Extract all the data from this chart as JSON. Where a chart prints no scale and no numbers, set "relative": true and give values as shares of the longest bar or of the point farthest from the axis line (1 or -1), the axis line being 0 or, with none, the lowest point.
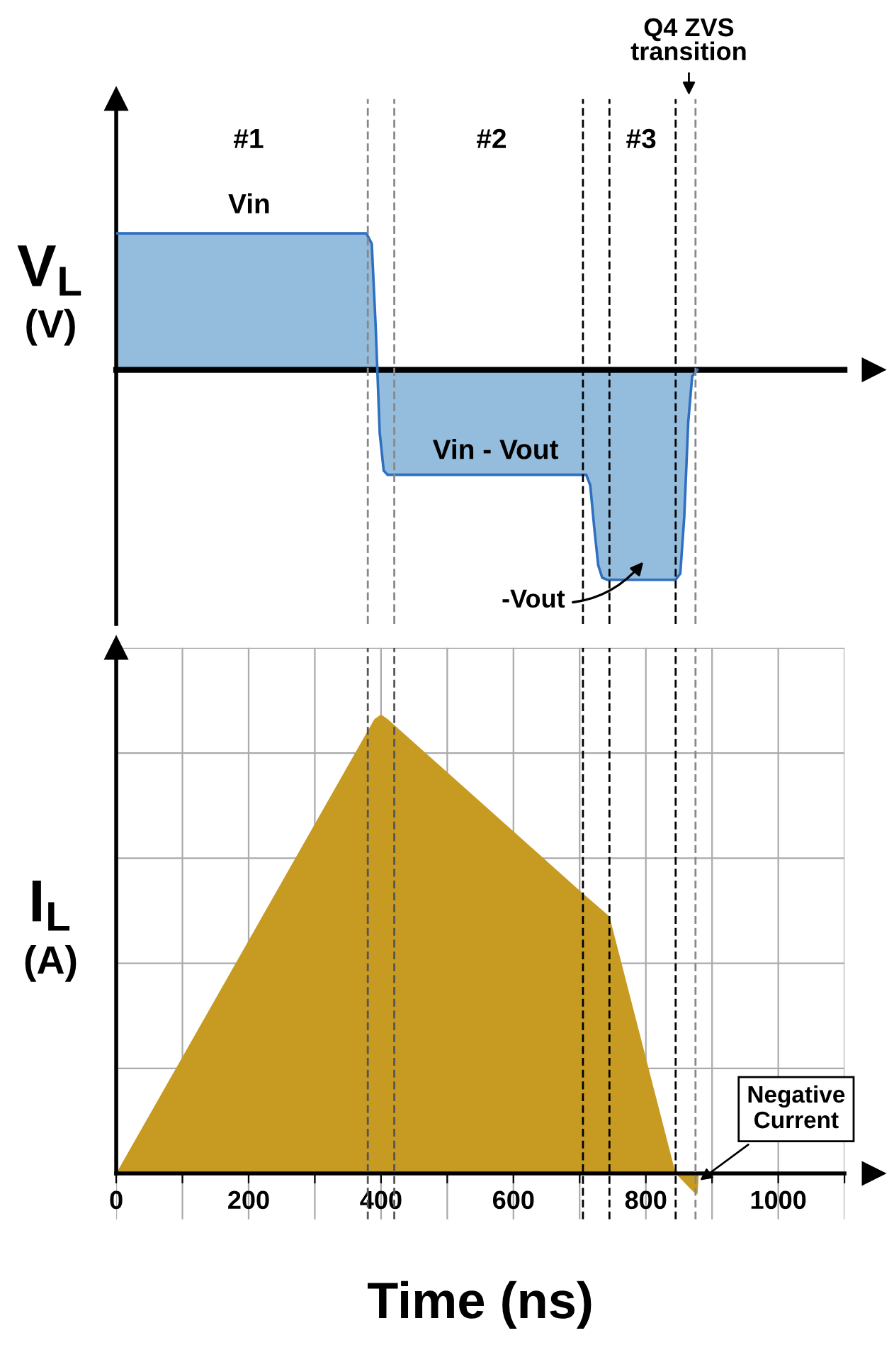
{
  "chart_data": [
    {
      "type": "area",
      "relative": true,
      "ylabel": "V$_{L}$ (V)",
      "x": [
        0,
        378,
        386,
        392,
        398,
        404,
        410,
        710,
        716,
        722,
        728,
        734,
        742,
        845,
        852,
        858,
        864,
        870,
        878
      ],
      "series": [
        {
          "color": "#94bcdc",
          "values": [
            0.65,
            0.65,
            0.6,
            0.2,
            -0.3,
            -0.48,
            -0.5,
            -0.5,
            -0.55,
            -0.75,
            -0.93,
            -0.99,
            -1,
            -1,
            -0.97,
            -0.7,
            -0.25,
            -0.03,
            0
          ]
        }
      ],
      "xlim": [
        0,
        1100
      ],
      "tick_labels": false,
      "grid": false,
      "ref_lines": [
        {
          "axis": "x",
          "value": 380,
          "color": "#888888",
          "line_style": "dashed"
        },
        {
          "axis": "x",
          "value": 420,
          "color": "#888888",
          "line_style": "dashed"
        },
        {
          "axis": "x",
          "value": 705,
          "color": "#000000",
          "line_style": "dashed"
        },
        {
          "axis": "x",
          "value": 745,
          "color": "#000000",
          "line_style": "dashed"
        },
        {
          "axis": "x",
          "value": 845,
          "color": "#000000",
          "line_style": "dashed"
        },
        {
          "axis": "x",
          "value": 875,
          "color": "#888888",
          "line_style": "dashed"
        }
      ],
      "annotations": [
        "#1",
        "#2",
        "#3",
        "Vin",
        "Vin - Vout",
        "-Vout",
        "Q4 ZVS transition"
      ]
    },
    {
      "type": "area",
      "relative": true,
      "ylabel": "I$_{L}$ (A)",
      "xlabel": "Time (ns)",
      "x": [
        0,
        390,
        400,
        410,
        705,
        745,
        845,
        855,
        865,
        872,
        878,
        880
      ],
      "series": [
        {
          "color": "#c79a22",
          "values": [
            0,
            0.99,
            1,
            0.99,
            0.61,
            0.56,
            0,
            -0.015,
            -0.03,
            -0.04,
            -0.045,
            0
          ]
        }
      ],
      "xlim": [
        0,
        1100
      ],
      "xticks": [
        0,
        {
          "value": 100,
          "label": null
        },
        200,
        {
          "value": 300,
          "label": null
        },
        400,
        {
          "value": 500,
          "label": null
        },
        600,
        {
          "value": 700,
          "label": null
        },
        800,
        {
          "value": 900,
          "label": null
        },
        1000,
        {
          "value": 1100,
          "label": null
        }
      ],
      "tick_labels": "x",
      "grid": true,
      "ref_lines": [
        {
          "axis": "x",
          "value": 380,
          "color": "#555555",
          "line_style": "dashed"
        },
        {
          "axis": "x",
          "value": 420,
          "color": "#555555",
          "line_style": "dashed"
        },
        {
          "axis": "x",
          "value": 705,
          "color": "#000000",
          "line_style": "dashed"
        },
        {
          "axis": "x",
          "value": 745,
          "color": "#000000",
          "line_style": "dashed"
        },
        {
          "axis": "x",
          "value": 845,
          "color": "#000000",
          "line_style": "dashed"
        },
        {
          "axis": "x",
          "value": 875,
          "color": "#888888",
          "line_style": "dashed"
        }
      ],
      "annotations": [
        {
          "text": "Negative Current",
          "x": 877,
          "y": -0.02
        }
      ]
    }
  ]
}
